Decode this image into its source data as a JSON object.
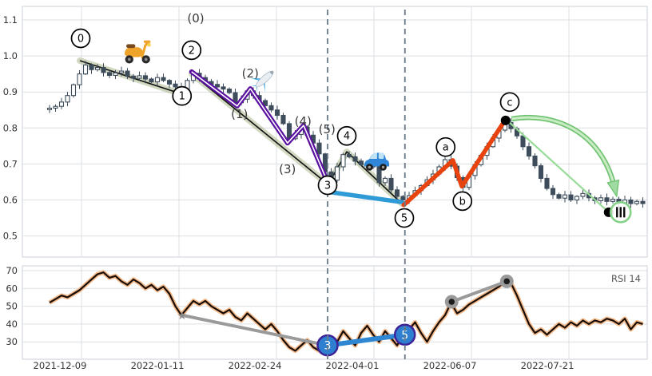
{
  "colors": {
    "candle_outline": "#3e4d5c",
    "candle_down_fill": "#3e4d5c",
    "candle_up_fill": "#ffffff",
    "trend_black": "#161616",
    "trend_band_olive": "#8a9a5b",
    "purple_wave": "#5a10a0",
    "blue_wave": "#2f9bd6",
    "orange_wave": "#e8430e",
    "green_arrow": "#74c476",
    "green_arrow_inner": "#c9ecc4",
    "green_thin": "#98dc98",
    "dashed_vline": "#6a7a8a",
    "grid": "#dcdfe3",
    "panel_border": "#c9d2d9",
    "rsi_line": "#190d06",
    "rsi_halo": "#f2b380",
    "gray_line": "#9a9a9a",
    "rsi_point_fill": "#2e7fd0",
    "rsi_point_border": "#3d2398",
    "axis_text": "#333333"
  },
  "x_axis": {
    "tick_labels": [
      "2021-12-09",
      "2022-01-11",
      "2022-02-24",
      "2022-04-01",
      "2022-06-07",
      "2022-07-21"
    ],
    "tick_i": [
      5.33,
      21.6,
      37.87,
      54.13,
      70.4,
      86.67
    ]
  },
  "vlines": [
    {
      "i": 46.4
    },
    {
      "i": 59.3
    }
  ],
  "chart_data": [
    {
      "type": "candlestick",
      "panel": "price",
      "ylim": [
        0.47,
        1.135
      ],
      "y_tick_labels": [
        "1.1",
        "1.0",
        "0.9",
        "0.8",
        "0.7",
        "0.6",
        "0.5"
      ],
      "y_tick_values": [
        1.1,
        1.0,
        0.9,
        0.8,
        0.7,
        0.6,
        0.5
      ],
      "closes": [
        0.855,
        0.86,
        0.872,
        0.89,
        0.92,
        0.95,
        0.975,
        0.962,
        0.968,
        0.954,
        0.946,
        0.953,
        0.958,
        0.944,
        0.938,
        0.945,
        0.936,
        0.928,
        0.94,
        0.932,
        0.922,
        0.914,
        0.905,
        0.932,
        0.952,
        0.94,
        0.929,
        0.921,
        0.914,
        0.908,
        0.898,
        0.87,
        0.88,
        0.903,
        0.89,
        0.876,
        0.862,
        0.85,
        0.835,
        0.812,
        0.77,
        0.782,
        0.802,
        0.78,
        0.758,
        0.728,
        0.678,
        0.655,
        0.692,
        0.726,
        0.72,
        0.708,
        0.698,
        0.702,
        0.692,
        0.648,
        0.66,
        0.628,
        0.61,
        0.6,
        0.612,
        0.626,
        0.64,
        0.656,
        0.672,
        0.692,
        0.712,
        0.694,
        0.662,
        0.635,
        0.668,
        0.698,
        0.724,
        0.748,
        0.772,
        0.794,
        0.815,
        0.798,
        0.778,
        0.748,
        0.722,
        0.695,
        0.66,
        0.632,
        0.615,
        0.605,
        0.614,
        0.6,
        0.61,
        0.618,
        0.606,
        0.598,
        0.606,
        0.596,
        0.602,
        0.592,
        0.6,
        0.59,
        0.596,
        0.59
      ],
      "elliott_wave": {
        "circled_labels": [
          {
            "label": "0",
            "i": 5.2,
            "price": 1.049
          },
          {
            "label": "1",
            "i": 22.1,
            "price": 0.889
          },
          {
            "label": "2",
            "i": 23.7,
            "price": 1.016
          },
          {
            "label": "3",
            "i": 46.4,
            "price": 0.641
          },
          {
            "label": "4",
            "i": 49.6,
            "price": 0.778
          },
          {
            "label": "5",
            "i": 59.2,
            "price": 0.55
          },
          {
            "label": "a",
            "i": 66.1,
            "price": 0.747
          },
          {
            "label": "b",
            "i": 68.9,
            "price": 0.597
          },
          {
            "label": "c",
            "i": 76.8,
            "price": 0.872
          }
        ],
        "sub_wave_labels": [
          {
            "label": "(0)",
            "i": 24.4,
            "price": 1.104
          },
          {
            "label": "(1)",
            "i": 31.7,
            "price": 0.838
          },
          {
            "label": "(2)",
            "i": 33.5,
            "price": 0.951
          },
          {
            "label": "(3)",
            "i": 39.7,
            "price": 0.685
          },
          {
            "label": "(4)",
            "i": 42.3,
            "price": 0.818
          },
          {
            "label": "(5)",
            "i": 46.3,
            "price": 0.796
          }
        ]
      },
      "overlays": {
        "trend_segments": [
          [
            [
              5.07,
              0.987
            ],
            [
              22.13,
              0.894
            ]
          ],
          [
            [
              23.7,
              0.951
            ],
            [
              46.5,
              0.643
            ],
            [
              49.6,
              0.734
            ],
            [
              58.8,
              0.59
            ]
          ]
        ],
        "purple_zigzag": [
          [
            23.7,
            0.956
          ],
          [
            31.3,
            0.861
          ],
          [
            33.5,
            0.909
          ],
          [
            39.7,
            0.758
          ],
          [
            42.4,
            0.807
          ],
          [
            46.5,
            0.645
          ]
        ],
        "blue_segment": [
          [
            46.3,
            0.623
          ],
          [
            58.8,
            0.594
          ]
        ],
        "orange_zigzag": [
          [
            59.1,
            0.586
          ],
          [
            67.3,
            0.71
          ],
          [
            68.8,
            0.638
          ],
          [
            76.0,
            0.821
          ]
        ],
        "green_arrow": {
          "from": [
            77.1,
            0.825
          ],
          "to": [
            94.3,
            0.634
          ]
        },
        "green_thin_line": [
          [
            76.7,
            0.816
          ],
          [
            92.7,
            0.575
          ]
        ],
        "dots": [
          {
            "name": "c-top-dot",
            "i": 76.1,
            "price": 0.821
          },
          {
            "name": "end-dot",
            "i": 93.3,
            "price": 0.566
          }
        ],
        "pattern_circle": {
          "i": 95.3,
          "price": 0.566,
          "glyph": "III"
        }
      },
      "vehicles": [
        {
          "icon": "scooter-icon",
          "i": 14.7,
          "price": 1.018
        },
        {
          "icon": "airplane-icon",
          "i": 35.9,
          "price": 0.936
        },
        {
          "icon": "car-icon",
          "i": 54.4,
          "price": 0.71
        }
      ]
    },
    {
      "type": "line",
      "panel": "rsi",
      "legend": "RSI 14",
      "y_tick_values": [
        70,
        60,
        50,
        40,
        30
      ],
      "ylim": [
        22,
        74
      ],
      "values": [
        52,
        54,
        56,
        55,
        57,
        59,
        62,
        65,
        68,
        69,
        66,
        67,
        64,
        62,
        65,
        63,
        60,
        62,
        59,
        61,
        57,
        50,
        45,
        49,
        53,
        51,
        53,
        50,
        48,
        46,
        48,
        44,
        42,
        46,
        43,
        40,
        37,
        40,
        36,
        31,
        27,
        25,
        28,
        31,
        27,
        25,
        29,
        26,
        30,
        36,
        32,
        28,
        35,
        39,
        34,
        30,
        36,
        32,
        28,
        34,
        37,
        41,
        35,
        30,
        36,
        41,
        45,
        52,
        46,
        48,
        51,
        53,
        55,
        57,
        59,
        61,
        64,
        63,
        56,
        48,
        40,
        35,
        37,
        34,
        37,
        40,
        38,
        41,
        39,
        42,
        40,
        42,
        41,
        43,
        42,
        40,
        43,
        37,
        41,
        40
      ],
      "markers": {
        "blue_points": [
          {
            "label": "3",
            "i": 46.4,
            "value": 28
          },
          {
            "label": "5",
            "i": 59.3,
            "value": 34
          }
        ],
        "gray_line_1": {
          "points": [
            [
              22.1,
              45
            ],
            [
              46.4,
              28
            ]
          ],
          "start_marker": "star"
        },
        "gray_line_2": {
          "points": [
            [
              67.1,
              52.5
            ],
            [
              76.3,
              64
            ]
          ],
          "end_markers": "dot"
        }
      }
    }
  ]
}
